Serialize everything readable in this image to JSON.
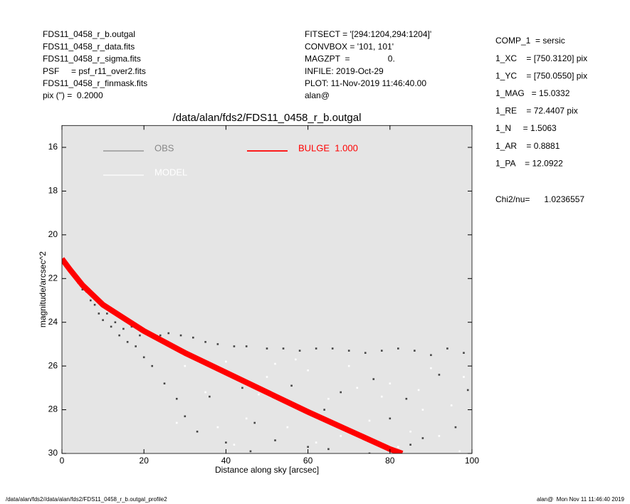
{
  "header": {
    "left": [
      "FDS11_0458_r_b.outgal",
      "FDS11_0458_r_data.fits",
      "FDS11_0458_r_sigma.fits",
      "PSF     = psf_r11_over2.fits",
      "FDS11_0458_r_finmask.fits",
      "pix (\") =  0.2000"
    ],
    "middle": [
      "FITSECT = '[294:1204,294:1204]'",
      "CONVBOX = '101, 101'",
      "MAGZPT  =                0.",
      "INFILE: 2019-Oct-29",
      "PLOT: 11-Nov-2019 11:46:40.00",
      "alan@"
    ],
    "right": [
      "COMP_1  = sersic",
      "1_XC    = [750.3120] pix",
      "1_YC    = [750.0550] pix",
      "1_MAG   = 15.0332",
      "1_RE    = 72.4407 pix",
      "1_N     = 1.5063",
      "1_AR    = 0.8881",
      "1_PA    = 12.0922"
    ],
    "chi2": "Chi2/nu=      1.0236557"
  },
  "footer": {
    "left": "/data/alan/fds2//data/alan/fds2/FDS11_0458_r_b.outgal_profile2",
    "right": "alan@  Mon Nov 11 11:46:40 2019"
  },
  "chart_data": {
    "type": "scatter",
    "title": "/data/alan/fds2/FDS11_0458_r_b.outgal",
    "x_label": "Distance along sky [arcsec]",
    "y_label": "magnitude/arcsec^2",
    "xlim": [
      0,
      100
    ],
    "xticks": [
      0,
      20,
      40,
      60,
      80,
      100
    ],
    "ylim": [
      30,
      15
    ],
    "yticks": [
      16,
      18,
      20,
      22,
      24,
      26,
      28,
      30
    ],
    "background": "#e5e5e5",
    "series": [
      {
        "name": "OBS",
        "color": "#444444",
        "legend_color": "#888888",
        "kind": "points",
        "x": [
          1,
          2,
          3,
          4,
          5,
          6,
          7,
          8,
          9,
          10,
          11,
          12,
          13,
          14,
          15,
          16,
          17,
          18,
          19,
          20,
          21,
          22,
          24,
          25,
          26,
          28,
          29,
          30,
          32,
          33,
          35,
          36,
          38,
          40,
          42,
          44,
          45,
          47,
          50,
          52,
          54,
          56,
          58,
          60,
          62,
          64,
          66,
          68,
          70,
          72,
          74,
          76,
          78,
          80,
          82,
          84,
          86,
          88,
          90,
          92,
          94,
          96,
          98,
          99,
          46,
          65,
          85,
          75
        ],
        "values": [
          21.3,
          21.7,
          21.9,
          22.2,
          22.5,
          22.6,
          23.0,
          23.2,
          23.6,
          23.9,
          23.6,
          24.2,
          24.0,
          24.6,
          24.3,
          24.9,
          24.2,
          25.1,
          24.6,
          25.6,
          24.5,
          26.0,
          24.6,
          26.8,
          24.5,
          27.5,
          24.6,
          28.3,
          24.7,
          29.0,
          24.9,
          27.4,
          25.0,
          29.5,
          25.1,
          27.0,
          25.1,
          28.6,
          25.2,
          29.4,
          25.2,
          26.9,
          25.3,
          29.7,
          25.2,
          28.0,
          25.2,
          27.2,
          25.3,
          29.1,
          25.4,
          26.6,
          25.3,
          28.4,
          25.2,
          27.5,
          25.3,
          29.3,
          25.5,
          26.4,
          25.2,
          28.8,
          25.4,
          27.1,
          29.9,
          29.8,
          29.6,
          30.0
        ]
      },
      {
        "name": "MODEL",
        "color": "#ffffff",
        "legend_color": "#ffffff",
        "kind": "points",
        "x": [
          30,
          35,
          40,
          45,
          50,
          55,
          60,
          65,
          70,
          75,
          80,
          85,
          90,
          95,
          38,
          48,
          58,
          68,
          78,
          88,
          98,
          42,
          52,
          62,
          72,
          82,
          92,
          28,
          33,
          57,
          87,
          97
        ],
        "values": [
          26.0,
          27.2,
          25.8,
          28.4,
          26.5,
          28.8,
          26.2,
          27.5,
          26.0,
          28.5,
          26.8,
          29.0,
          26.1,
          27.8,
          28.8,
          27.3,
          27.9,
          29.2,
          27.4,
          28.0,
          26.5,
          29.6,
          25.9,
          29.5,
          27.0,
          29.7,
          29.2,
          28.6,
          25.6,
          25.7,
          27.1,
          29.9
        ]
      },
      {
        "name": "BULGE  1.000",
        "color": "#ff0000",
        "legend_color": "#ff0000",
        "kind": "band",
        "x": [
          0,
          2,
          5,
          10,
          15,
          20,
          30,
          40,
          50,
          60,
          70,
          80,
          83
        ],
        "values": [
          21.1,
          21.6,
          22.3,
          23.2,
          23.8,
          24.4,
          25.4,
          26.3,
          27.2,
          28.1,
          28.95,
          29.8,
          30.0
        ]
      }
    ]
  }
}
